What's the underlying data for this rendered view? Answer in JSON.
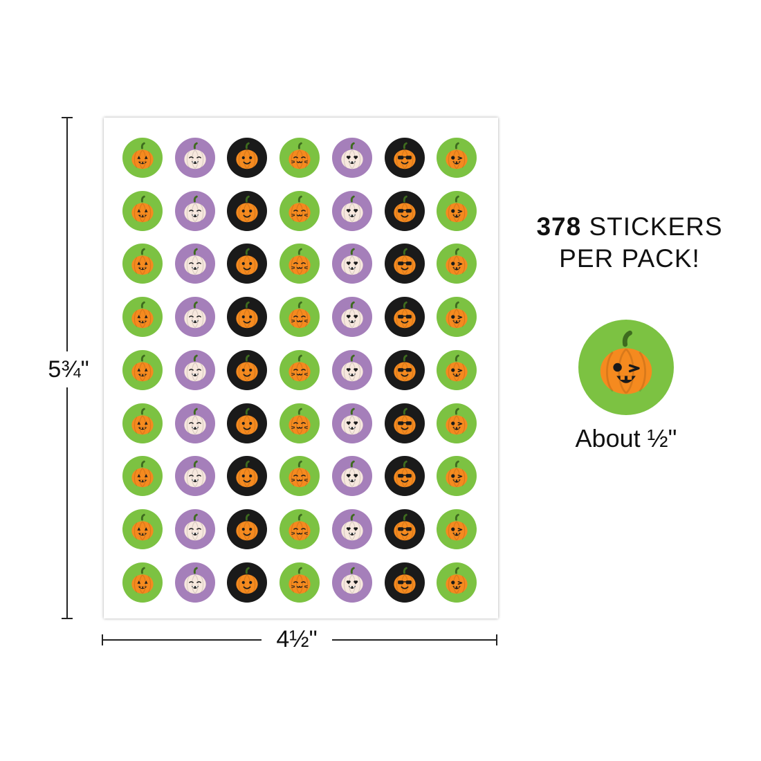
{
  "dimensions": {
    "height_label": "5¾\"",
    "width_label": "4½\""
  },
  "headline": {
    "count": "378",
    "line1_rest": " STICKERS",
    "line2": "PER PACK!"
  },
  "sample": {
    "caption": "About ½\"",
    "icon": "winking-pumpkin-sticker"
  },
  "sheet": {
    "rows": 9,
    "columns": [
      {
        "bg": "#7cc242",
        "icon": "jack-o-lantern-sticker"
      },
      {
        "bg": "#a57fba",
        "icon": "white-pumpkin-ghost-sticker"
      },
      {
        "bg": "#1a1a1a",
        "icon": "smiling-pumpkin-sticker"
      },
      {
        "bg": "#7cc242",
        "icon": "cat-pumpkin-sticker"
      },
      {
        "bg": "#a57fba",
        "icon": "heart-eyes-white-pumpkin-sticker"
      },
      {
        "bg": "#1a1a1a",
        "icon": "sunglasses-pumpkin-sticker"
      },
      {
        "bg": "#7cc242",
        "icon": "winking-pumpkin-sticker"
      }
    ]
  },
  "colors": {
    "green": "#7cc242",
    "purple": "#a57fba",
    "black": "#1a1a1a",
    "orange": "#f58a1f",
    "cream": "#f7e8de"
  }
}
